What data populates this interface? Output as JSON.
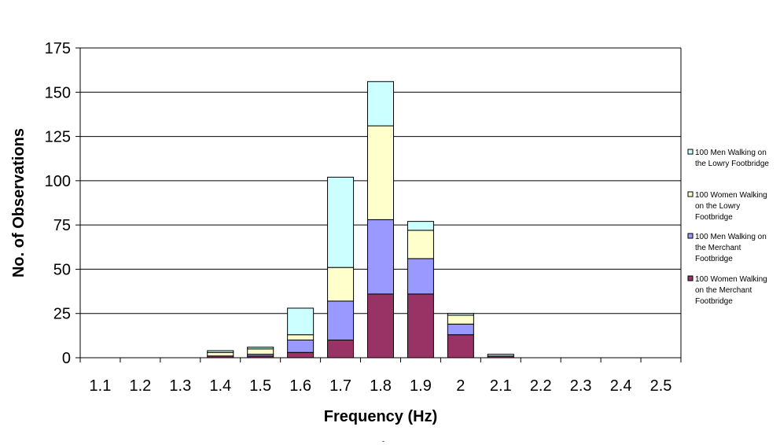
{
  "chart_data": {
    "type": "bar",
    "stacked": true,
    "xlabel": "Frequency (Hz)",
    "ylabel": "No. of Observations",
    "ylim": [
      0,
      175
    ],
    "yticks": [
      0,
      25,
      50,
      75,
      100,
      125,
      150,
      175
    ],
    "grid": true,
    "legend_position": "right",
    "categories": [
      "1.1",
      "1.2",
      "1.3",
      "1.4",
      "1.5",
      "1.6",
      "1.7",
      "1.8",
      "1.9",
      "2",
      "2.1",
      "2.2",
      "2.3",
      "2.4",
      "2.5"
    ],
    "series": [
      {
        "name": "100 Women Walking on the Merchant Footbridge",
        "color": "#993366",
        "values": [
          0,
          0,
          0,
          1,
          1,
          3,
          10,
          36,
          36,
          13,
          1,
          0,
          0,
          0,
          0
        ]
      },
      {
        "name": "100 Men Walking on the Merchant Footbridge",
        "color": "#9999ff",
        "values": [
          0,
          0,
          0,
          0,
          1,
          7,
          22,
          42,
          20,
          6,
          0,
          0,
          0,
          0,
          0
        ]
      },
      {
        "name": "100 Women Walking on the Lowry Footbridge",
        "color": "#ffffcc",
        "values": [
          0,
          0,
          0,
          2,
          3,
          3,
          19,
          53,
          16,
          5,
          0,
          0,
          0,
          0,
          0
        ]
      },
      {
        "name": "100 Men Walking on the Lowry Footbridge",
        "color": "#ccffff",
        "values": [
          0,
          0,
          0,
          1,
          1,
          15,
          51,
          25,
          5,
          1,
          1,
          0,
          0,
          0,
          0
        ]
      }
    ],
    "legend": [
      {
        "lines": [
          "100 Men Walking on",
          "the Lowry Footbridge"
        ],
        "color": "#ccffff"
      },
      {
        "lines": [
          "100 Women Walking",
          "on the Lowry",
          "Footbridge"
        ],
        "color": "#ffffcc"
      },
      {
        "lines": [
          "100 Men Walking on",
          "the Merchant",
          "Footbridge"
        ],
        "color": "#9999ff"
      },
      {
        "lines": [
          "100 Women Walking",
          "on the Merchant",
          "Footbridge"
        ],
        "color": "#993366"
      }
    ]
  },
  "footer_mark": "-"
}
